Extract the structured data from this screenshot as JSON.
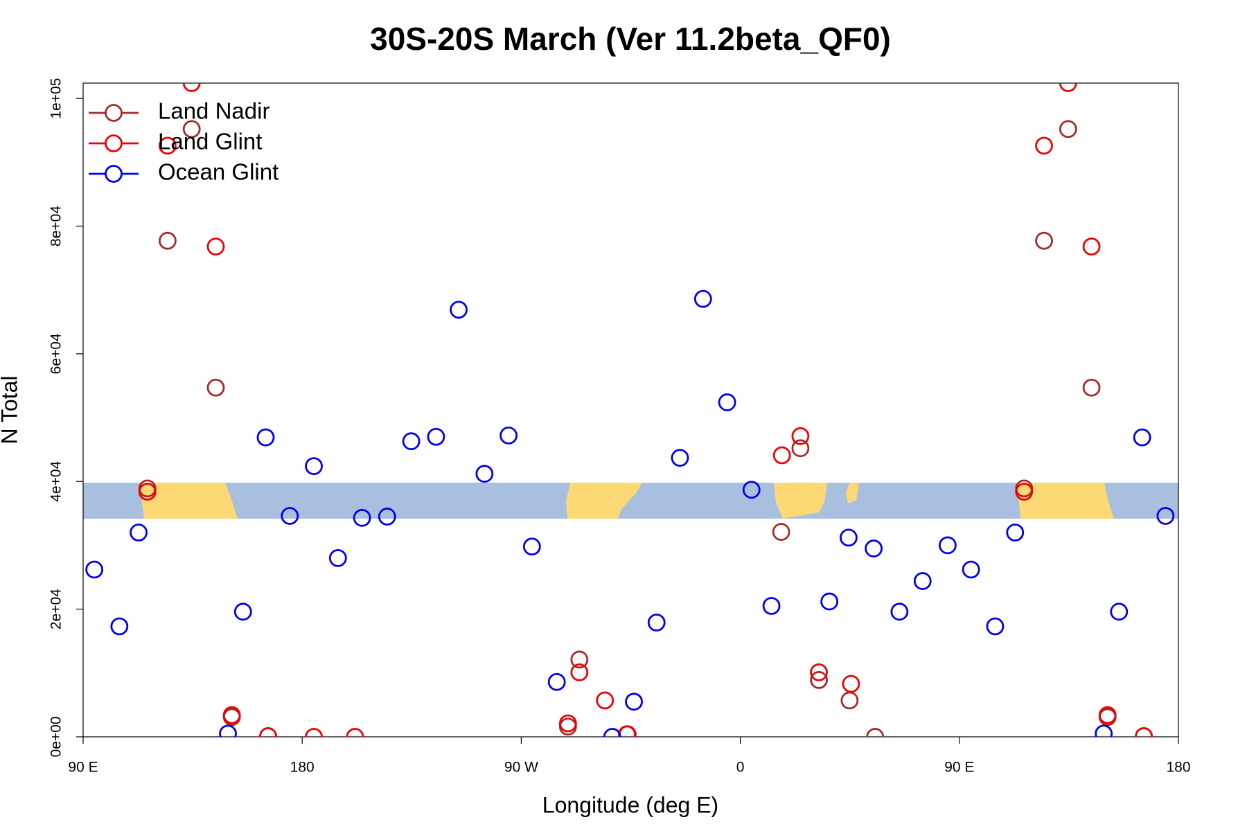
{
  "chart_data": {
    "type": "scatter",
    "title": "30S-20S March (Ver 11.2beta_QF0)",
    "x_label": "Longitude (deg E)",
    "y_label": "N Total",
    "xlim": [
      90,
      540
    ],
    "ylim": [
      0,
      102400
    ],
    "xticks": [
      {
        "value": 90,
        "label": "90 E"
      },
      180,
      {
        "value": 270,
        "label": "90 W"
      },
      {
        "value": 360,
        "label": "0"
      },
      {
        "value": 450,
        "label": "90 E"
      },
      {
        "value": 540,
        "label": "180"
      }
    ],
    "yticks": [
      {
        "value": 0,
        "label": "0e+00"
      },
      {
        "value": 20000,
        "label": "2e+04"
      },
      {
        "value": 40000,
        "label": "4e+04"
      },
      {
        "value": 60000,
        "label": "6e+04"
      },
      {
        "value": 80000,
        "label": "8e+04"
      },
      {
        "value": 100000,
        "label": "1e+05"
      }
    ],
    "legend": "top-left",
    "series": [
      {
        "name": "Land Nadir",
        "color": "#a52a2a",
        "x": [
          116.4,
          124.7,
          134.6,
          144.5,
          151.1,
          166,
          289.2,
          293.9,
          313.7,
          376.8,
          384.7,
          392.3,
          404.9,
          415.4,
          476.6,
          484.8,
          494.7,
          504.3,
          510.9,
          525.8
        ],
        "values": [
          38900,
          77700,
          95200,
          54700,
          3100,
          100,
          1600,
          12100,
          400,
          32100,
          45200,
          8900,
          5700,
          0,
          38900,
          77700,
          95200,
          54700,
          3100,
          100
        ]
      },
      {
        "name": "Land Glint",
        "color": "#ee0000",
        "x": [
          116.4,
          124.7,
          134.6,
          144.5,
          151.1,
          166,
          184.8,
          201.7,
          289.2,
          293.9,
          304.4,
          313.4,
          377.1,
          384.7,
          392.3,
          405.5,
          476.6,
          484.8,
          494.7,
          504.3,
          510.9,
          525.8
        ],
        "values": [
          38400,
          92600,
          102400,
          76800,
          3400,
          100,
          0,
          0,
          2100,
          10100,
          5700,
          400,
          44100,
          47100,
          10100,
          8300,
          38400,
          92600,
          102400,
          76800,
          3400,
          100
        ]
      },
      {
        "name": "Ocean Glint",
        "color": "#0000ee",
        "x": [
          94.6,
          104.9,
          112.8,
          149.5,
          155.7,
          165,
          174.9,
          184.8,
          194.7,
          204.6,
          214.9,
          224.8,
          235,
          244.3,
          254.9,
          264.8,
          274.4,
          284.6,
          307.4,
          316.3,
          325.6,
          335.2,
          344.7,
          354.6,
          364.6,
          372.8,
          396.6,
          404.5,
          414.8,
          425.4,
          434.9,
          445.2,
          454.8,
          464.7,
          472.9,
          509.3,
          515.6,
          525.1,
          534.7
        ],
        "values": [
          26200,
          17300,
          32000,
          500,
          19600,
          46900,
          34600,
          42400,
          28000,
          34300,
          34500,
          46300,
          47000,
          66900,
          41200,
          47200,
          29800,
          8600,
          0,
          5500,
          17900,
          43700,
          68600,
          52400,
          38700,
          20500,
          21200,
          31200,
          29500,
          19600,
          24400,
          30000,
          26200,
          17300,
          32000,
          500,
          19600,
          46900,
          34600
        ]
      }
    ]
  }
}
